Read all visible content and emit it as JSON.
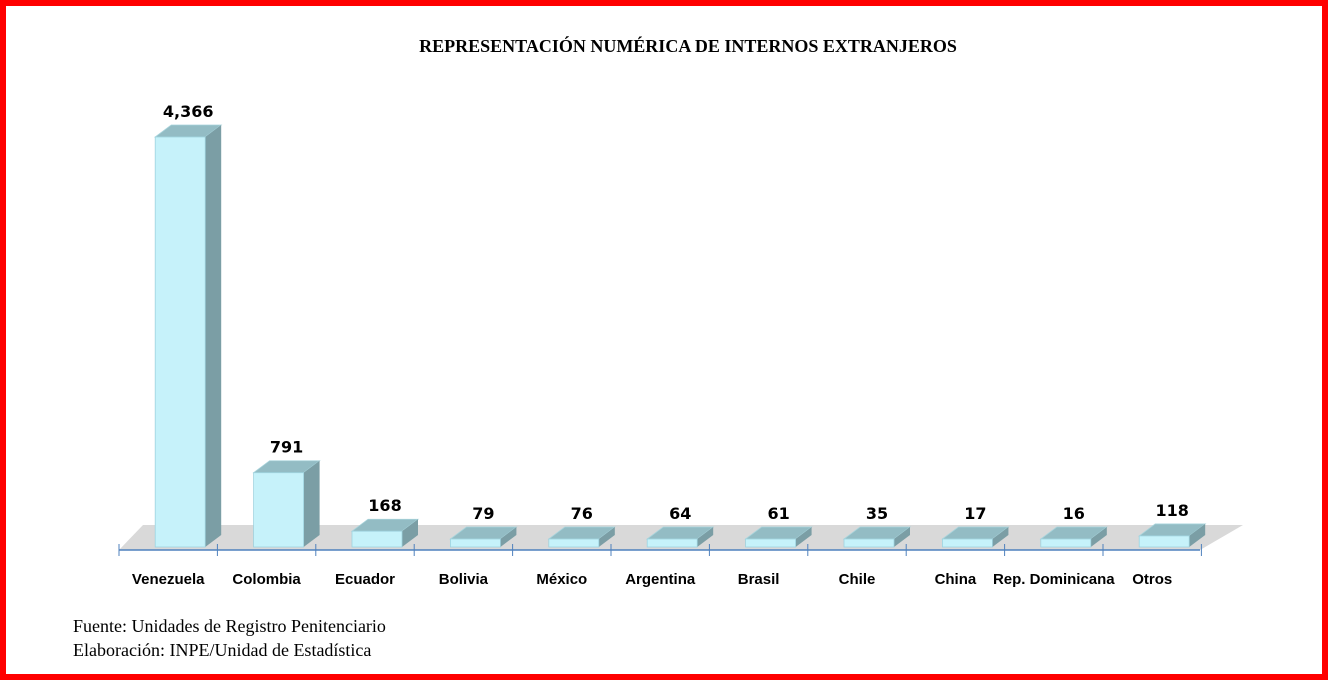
{
  "chart_data": {
    "type": "bar",
    "title": "REPRESENTACIÓN NUMÉRICA DE INTERNOS EXTRANJEROS",
    "categories": [
      "Venezuela",
      "Colombia",
      "Ecuador",
      "Bolivia",
      "México",
      "Argentina",
      "Brasil",
      "Chile",
      "China",
      "Rep. Dominicana",
      "Otros"
    ],
    "values": [
      4366,
      791,
      168,
      79,
      76,
      64,
      61,
      35,
      17,
      16,
      118
    ],
    "data_labels": [
      "4,366",
      "791",
      "168",
      "79",
      "76",
      "64",
      "61",
      "35",
      "17",
      "16",
      "118"
    ],
    "xlabel": "",
    "ylabel": "",
    "style": "3d-column",
    "grid": false,
    "colors": {
      "front": "#c6f2fa",
      "top": "#93bcc4",
      "side": "#7b9ea5",
      "floor": "#d9d9d9",
      "axis": "#4f81bd",
      "frame": "#ff0000"
    }
  },
  "footer": {
    "source": "Fuente: Unidades de Registro Penitenciario",
    "credit": "Elaboración: INPE/Unidad de Estadística"
  }
}
